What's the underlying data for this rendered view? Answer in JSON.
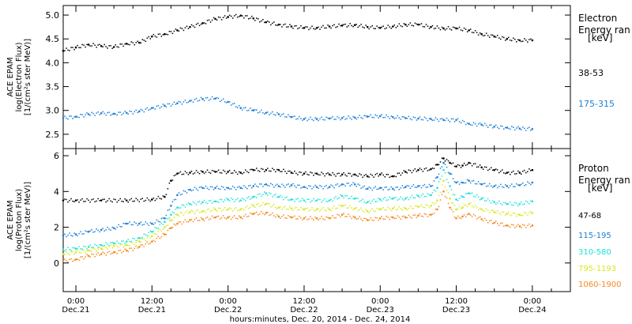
{
  "colors": {
    "black": "#000000",
    "blue": "#1e7fd8",
    "cyan": "#1ee3d8",
    "yellow": "#d8e81e",
    "orange": "#f5881e"
  },
  "x_axis": {
    "title": "hours:minutes, Dec. 20, 2014 - Dec. 24, 2014",
    "ticks": [
      {
        "t": 0,
        "time": "0:00",
        "date": "Dec.21"
      },
      {
        "t": 12,
        "time": "12:00",
        "date": "Dec.21"
      },
      {
        "t": 24,
        "time": "0:00",
        "date": "Dec.22"
      },
      {
        "t": 36,
        "time": "12:00",
        "date": "Dec.22"
      },
      {
        "t": 48,
        "time": "0:00",
        "date": "Dec.23"
      },
      {
        "t": 60,
        "time": "12:00",
        "date": "Dec.23"
      },
      {
        "t": 72,
        "time": "0:00",
        "date": "Dec.24"
      }
    ]
  },
  "chart_data": [
    {
      "type": "scatter",
      "ylabel_lines": [
        "ACE EPAM",
        "log(Electron Flux)",
        "[1/(cm²s ster MeV)]"
      ],
      "legend_title_lines": [
        "Electron",
        "Energy ran"
      ],
      "legend_unit": "[keV]",
      "xlim": [
        -2,
        78
      ],
      "ylim": [
        2.2,
        5.2
      ],
      "yticks": [
        2.5,
        3.0,
        3.5,
        4.0,
        4.5,
        5.0
      ],
      "ytick_labels": [
        "2.5",
        "3.0",
        "3.5",
        "4.0",
        "4.5",
        "5.0"
      ],
      "series": [
        {
          "name": "38-53",
          "color": "#000000",
          "x": [
            -2,
            0,
            2,
            4,
            6,
            8,
            10,
            12,
            14,
            16,
            18,
            20,
            22,
            24,
            26,
            28,
            30,
            32,
            34,
            36,
            38,
            40,
            42,
            44,
            46,
            48,
            50,
            52,
            54,
            56,
            58,
            60,
            62,
            64,
            66,
            68,
            70,
            72
          ],
          "y": [
            4.25,
            4.32,
            4.38,
            4.35,
            4.33,
            4.4,
            4.42,
            4.55,
            4.6,
            4.68,
            4.75,
            4.83,
            4.92,
            4.96,
            4.99,
            4.93,
            4.85,
            4.8,
            4.76,
            4.73,
            4.73,
            4.76,
            4.78,
            4.79,
            4.75,
            4.73,
            4.76,
            4.8,
            4.8,
            4.75,
            4.72,
            4.72,
            4.68,
            4.6,
            4.55,
            4.5,
            4.47,
            4.47
          ]
        },
        {
          "name": "175-315",
          "color": "#1e7fd8",
          "x": [
            -2,
            0,
            2,
            4,
            6,
            8,
            10,
            12,
            14,
            16,
            18,
            20,
            22,
            24,
            26,
            28,
            30,
            32,
            34,
            36,
            38,
            40,
            42,
            44,
            46,
            48,
            50,
            52,
            54,
            56,
            58,
            60,
            62,
            64,
            66,
            68,
            70,
            72
          ],
          "y": [
            2.84,
            2.87,
            2.92,
            2.94,
            2.93,
            2.95,
            2.98,
            3.05,
            3.1,
            3.15,
            3.2,
            3.24,
            3.25,
            3.18,
            3.05,
            3.0,
            2.95,
            2.92,
            2.86,
            2.82,
            2.82,
            2.83,
            2.84,
            2.85,
            2.87,
            2.88,
            2.86,
            2.84,
            2.83,
            2.82,
            2.8,
            2.8,
            2.72,
            2.7,
            2.66,
            2.64,
            2.62,
            2.61
          ]
        }
      ]
    },
    {
      "type": "scatter",
      "ylabel_lines": [
        "ACE EPAM",
        "log(Proton Flux)",
        "[1/(cm²s ster MeV)]"
      ],
      "legend_title_lines": [
        "Proton",
        "Energy ran"
      ],
      "legend_unit": "[keV]",
      "xlim": [
        -2,
        78
      ],
      "ylim": [
        -1.6,
        6.4
      ],
      "yticks": [
        0,
        2,
        4,
        6
      ],
      "ytick_labels": [
        "0",
        "2",
        "4",
        "6"
      ],
      "series": [
        {
          "name": "47-68",
          "color": "#000000",
          "x": [
            -2,
            0,
            4,
            8,
            12,
            14,
            15,
            16,
            18,
            20,
            22,
            24,
            26,
            28,
            30,
            32,
            34,
            36,
            38,
            40,
            42,
            44,
            46,
            48,
            50,
            52,
            54,
            56,
            57,
            58,
            59,
            60,
            61,
            62,
            64,
            66,
            68,
            70,
            72
          ],
          "y": [
            3.5,
            3.5,
            3.5,
            3.5,
            3.55,
            3.7,
            4.6,
            5.0,
            5.05,
            5.1,
            5.1,
            5.1,
            5.05,
            5.2,
            5.2,
            5.2,
            5.05,
            5.0,
            5.0,
            4.95,
            4.95,
            4.95,
            4.85,
            4.95,
            4.85,
            5.1,
            5.2,
            5.25,
            5.5,
            5.85,
            5.6,
            5.4,
            5.45,
            5.6,
            5.35,
            5.2,
            5.05,
            5.05,
            5.2
          ]
        },
        {
          "name": "115-195",
          "color": "#1e7fd8",
          "x": [
            -2,
            0,
            2,
            4,
            6,
            8,
            10,
            12,
            14,
            15,
            16,
            18,
            20,
            22,
            24,
            26,
            28,
            30,
            32,
            34,
            36,
            38,
            40,
            42,
            44,
            46,
            48,
            50,
            52,
            54,
            56,
            57,
            58,
            59,
            60,
            61,
            62,
            64,
            66,
            68,
            70,
            72
          ],
          "y": [
            1.55,
            1.6,
            1.75,
            1.85,
            1.95,
            2.2,
            2.2,
            2.2,
            2.5,
            3.2,
            3.8,
            4.1,
            4.2,
            4.2,
            4.2,
            4.2,
            4.3,
            4.4,
            4.3,
            4.35,
            4.25,
            4.25,
            4.25,
            4.4,
            4.4,
            4.15,
            4.2,
            4.15,
            4.25,
            4.3,
            4.3,
            4.8,
            5.6,
            5.0,
            4.5,
            4.5,
            4.6,
            4.4,
            4.3,
            4.3,
            4.35,
            4.5
          ]
        },
        {
          "name": "310-580",
          "color": "#1ee3d8",
          "x": [
            -2,
            0,
            2,
            4,
            6,
            8,
            10,
            12,
            14,
            15,
            16,
            18,
            20,
            22,
            24,
            26,
            28,
            30,
            32,
            34,
            36,
            38,
            40,
            42,
            44,
            46,
            48,
            50,
            52,
            54,
            56,
            57,
            58,
            59,
            60,
            61,
            62,
            64,
            66,
            68,
            70,
            72
          ],
          "y": [
            0.75,
            0.8,
            0.9,
            1.0,
            1.1,
            1.2,
            1.4,
            1.75,
            2.3,
            2.7,
            3.1,
            3.3,
            3.4,
            3.45,
            3.55,
            3.5,
            3.7,
            3.9,
            3.7,
            3.55,
            3.5,
            3.5,
            3.5,
            3.75,
            3.6,
            3.4,
            3.55,
            3.6,
            3.6,
            3.75,
            3.8,
            4.2,
            5.2,
            4.3,
            3.55,
            3.7,
            3.9,
            3.6,
            3.4,
            3.3,
            3.3,
            3.45
          ]
        },
        {
          "name": "795-1193",
          "color": "#d8e81e",
          "x": [
            -2,
            0,
            2,
            4,
            6,
            8,
            10,
            12,
            14,
            15,
            16,
            18,
            20,
            22,
            24,
            26,
            28,
            30,
            32,
            34,
            36,
            38,
            40,
            42,
            44,
            46,
            48,
            50,
            52,
            54,
            56,
            57,
            58,
            59,
            60,
            61,
            62,
            64,
            66,
            68,
            70,
            72
          ],
          "y": [
            0.5,
            0.6,
            0.7,
            0.8,
            0.95,
            1.0,
            1.2,
            1.5,
            2.0,
            2.4,
            2.7,
            2.85,
            2.9,
            3.0,
            3.0,
            3.0,
            3.2,
            3.3,
            3.1,
            3.05,
            3.0,
            3.0,
            3.0,
            3.2,
            3.05,
            2.9,
            3.0,
            3.05,
            3.05,
            3.15,
            3.2,
            3.5,
            4.6,
            3.6,
            3.0,
            3.1,
            3.3,
            3.0,
            2.85,
            2.75,
            2.7,
            2.8
          ]
        },
        {
          "name": "1060-1900",
          "color": "#f5881e",
          "x": [
            -2,
            0,
            2,
            4,
            6,
            8,
            10,
            12,
            14,
            15,
            16,
            18,
            20,
            22,
            24,
            26,
            28,
            30,
            32,
            34,
            36,
            38,
            40,
            42,
            44,
            46,
            48,
            50,
            52,
            54,
            56,
            57,
            58,
            59,
            60,
            61,
            62,
            64,
            66,
            68,
            70,
            72
          ],
          "y": [
            0.1,
            0.2,
            0.4,
            0.5,
            0.6,
            0.7,
            0.9,
            1.2,
            1.6,
            1.95,
            2.2,
            2.4,
            2.45,
            2.55,
            2.55,
            2.55,
            2.75,
            2.8,
            2.6,
            2.55,
            2.5,
            2.5,
            2.5,
            2.7,
            2.55,
            2.4,
            2.5,
            2.55,
            2.55,
            2.65,
            2.7,
            3.0,
            4.0,
            3.1,
            2.5,
            2.6,
            2.75,
            2.45,
            2.25,
            2.1,
            2.05,
            2.1
          ]
        }
      ]
    }
  ]
}
